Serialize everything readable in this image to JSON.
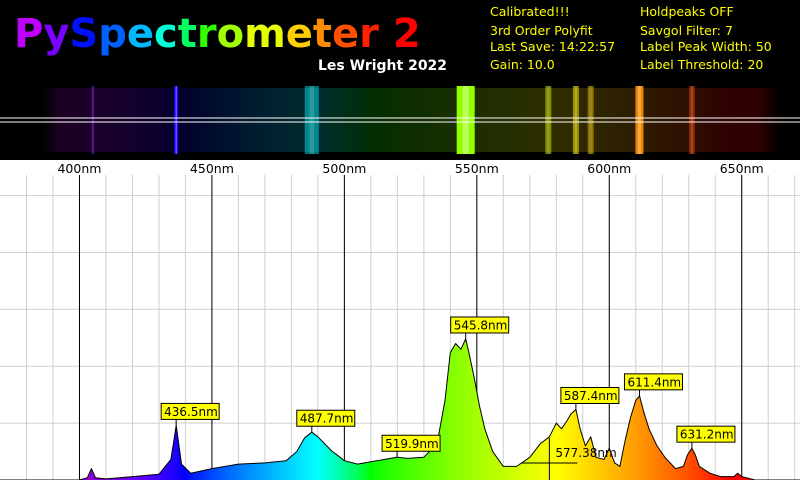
{
  "app": {
    "title_letters": [
      "P",
      "y",
      "S",
      "p",
      "e",
      "c",
      "t",
      "r",
      "o",
      "m",
      "e",
      "t",
      "e",
      "r",
      " ",
      "2"
    ],
    "title_colors": [
      "#c000ff",
      "#7a00ff",
      "#0010ff",
      "#0060ff",
      "#00b8ff",
      "#00ffd8",
      "#00ff60",
      "#30ff00",
      "#a0ff00",
      "#e6ff00",
      "#ffd000",
      "#ff8c00",
      "#ff5000",
      "#ff2000",
      "#ff0000",
      "#ff0000"
    ],
    "subtitle": "Les Wright 2022"
  },
  "status": {
    "left": [
      "Calibrated!!!",
      "3rd Order Polyfit",
      "Last Save: 14:22:57",
      "Gain: 10.0"
    ],
    "right": [
      "Holdpeaks OFF",
      "Savgol Filter: 7",
      "Label Peak Width: 50",
      "Label Threshold: 20"
    ]
  },
  "preview_bands": [
    {
      "nm": 405,
      "intensity": 0.35,
      "width": 3
    },
    {
      "nm": 436.5,
      "intensity": 0.95,
      "width": 4
    },
    {
      "nm": 487.7,
      "intensity": 0.45,
      "width": 14
    },
    {
      "nm": 545.8,
      "intensity": 1.0,
      "width": 18
    },
    {
      "nm": 577,
      "intensity": 0.45,
      "width": 6
    },
    {
      "nm": 587.4,
      "intensity": 0.55,
      "width": 6
    },
    {
      "nm": 593,
      "intensity": 0.45,
      "width": 6
    },
    {
      "nm": 611.4,
      "intensity": 0.9,
      "width": 8
    },
    {
      "nm": 631.2,
      "intensity": 0.45,
      "width": 6
    }
  ],
  "chart_data": {
    "type": "line",
    "xlabel": "",
    "ylabel": "",
    "xlim": [
      370,
      672
    ],
    "ylim": [
      0,
      255
    ],
    "grid": true,
    "major_ticks": [
      400,
      450,
      500,
      550,
      600,
      650
    ],
    "tick_labels": [
      "400nm",
      "450nm",
      "500nm",
      "550nm",
      "600nm",
      "650nm"
    ],
    "spectrum": [
      [
        370,
        0
      ],
      [
        400,
        0
      ],
      [
        403,
        2
      ],
      [
        404.5,
        10
      ],
      [
        406,
        2
      ],
      [
        410,
        1
      ],
      [
        420,
        3
      ],
      [
        430,
        5
      ],
      [
        434.5,
        18
      ],
      [
        436.5,
        48
      ],
      [
        438.5,
        14
      ],
      [
        442,
        6
      ],
      [
        450,
        10
      ],
      [
        460,
        14
      ],
      [
        470,
        15
      ],
      [
        478,
        17
      ],
      [
        482,
        25
      ],
      [
        485,
        37
      ],
      [
        487.7,
        42
      ],
      [
        490,
        38
      ],
      [
        495,
        26
      ],
      [
        500,
        17
      ],
      [
        505,
        14
      ],
      [
        510,
        16
      ],
      [
        515,
        18
      ],
      [
        519.9,
        20
      ],
      [
        524,
        19
      ],
      [
        530,
        20
      ],
      [
        535,
        32
      ],
      [
        538,
        70
      ],
      [
        540,
        112
      ],
      [
        542,
        120
      ],
      [
        544,
        115
      ],
      [
        545.8,
        124
      ],
      [
        547,
        112
      ],
      [
        549,
        90
      ],
      [
        551,
        65
      ],
      [
        553,
        45
      ],
      [
        556,
        25
      ],
      [
        560,
        12
      ],
      [
        565,
        12
      ],
      [
        570,
        20
      ],
      [
        574,
        32
      ],
      [
        577.4,
        38
      ],
      [
        580,
        50
      ],
      [
        582,
        45
      ],
      [
        584,
        52
      ],
      [
        585.5,
        58
      ],
      [
        587.4,
        62
      ],
      [
        589,
        45
      ],
      [
        591,
        30
      ],
      [
        593,
        38
      ],
      [
        595,
        20
      ],
      [
        598,
        18
      ],
      [
        600,
        28
      ],
      [
        602,
        15
      ],
      [
        604,
        12
      ],
      [
        606,
        35
      ],
      [
        608,
        55
      ],
      [
        610,
        70
      ],
      [
        611.4,
        74
      ],
      [
        613,
        60
      ],
      [
        615,
        45
      ],
      [
        618,
        30
      ],
      [
        621,
        20
      ],
      [
        625,
        10
      ],
      [
        628,
        12
      ],
      [
        629.5,
        22
      ],
      [
        631.2,
        28
      ],
      [
        632.5,
        22
      ],
      [
        634,
        12
      ],
      [
        638,
        6
      ],
      [
        642,
        3
      ],
      [
        647,
        3
      ],
      [
        648.5,
        6
      ],
      [
        650,
        3
      ],
      [
        655,
        0
      ],
      [
        672,
        0
      ]
    ],
    "peaks": [
      {
        "nm": 436.5,
        "value": 48,
        "label": "436.5nm"
      },
      {
        "nm": 487.7,
        "value": 42,
        "label": "487.7nm"
      },
      {
        "nm": 519.9,
        "value": 20,
        "label": "519.9nm"
      },
      {
        "nm": 545.8,
        "value": 124,
        "label": "545.8nm"
      },
      {
        "nm": 587.4,
        "value": 62,
        "label": "587.4nm"
      },
      {
        "nm": 611.4,
        "value": 74,
        "label": "611.4nm"
      },
      {
        "nm": 631.2,
        "value": 28,
        "label": "631.2nm"
      }
    ],
    "cursor": {
      "nm": 577.38,
      "value": 15,
      "label": "577.38nm"
    }
  }
}
